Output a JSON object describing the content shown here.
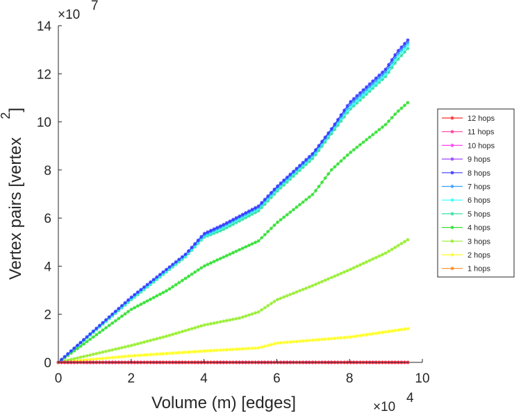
{
  "chart_data": {
    "type": "line",
    "title": "",
    "xlabel": "Volume (m) [edges]",
    "ylabel": "Vertex pairs [vertex",
    "ylabel_superscript": "2",
    "ylabel_close": "]",
    "x_multiplier": "×10",
    "x_multiplier_exp": "4",
    "y_multiplier": "×10",
    "y_multiplier_exp": "7",
    "x_ticks": [
      "0",
      "2",
      "4",
      "6",
      "8",
      "10"
    ],
    "y_ticks": [
      "0",
      "2",
      "4",
      "6",
      "8",
      "10",
      "12",
      "14"
    ],
    "xlim": [
      0,
      10
    ],
    "ylim": [
      0,
      14
    ],
    "grid": false,
    "legend_position": "right",
    "x_range": [
      0,
      9.6
    ],
    "series": [
      {
        "name": "12 hops",
        "color": "#ff2a2a",
        "x": [
          0,
          9.6
        ],
        "values": [
          0,
          0
        ]
      },
      {
        "name": "11 hops",
        "color": "#ff3f9f",
        "x": [
          0,
          9.6
        ],
        "values": [
          0,
          0
        ]
      },
      {
        "name": "10 hops",
        "color": "#ff44ee",
        "x": [
          0,
          9.6
        ],
        "values": [
          0,
          0
        ]
      },
      {
        "name": "9 hops",
        "color": "#9a44ff",
        "x": [
          0,
          9.6
        ],
        "values": [
          0,
          0
        ]
      },
      {
        "name": "8 hops",
        "color": "#3a3aff",
        "x": [
          0,
          2,
          3.5,
          4,
          4.5,
          5,
          5.5,
          6,
          7,
          7.5,
          8,
          8.5,
          9,
          9.3,
          9.6
        ],
        "values": [
          0,
          2.7,
          4.5,
          5.35,
          5.7,
          6.1,
          6.5,
          7.3,
          8.7,
          9.7,
          10.8,
          11.5,
          12.2,
          12.9,
          13.4
        ]
      },
      {
        "name": "7 hops",
        "color": "#3aa0ff",
        "x": [
          0,
          2,
          3.5,
          4,
          4.5,
          5,
          5.5,
          6,
          7,
          7.5,
          8,
          8.5,
          9,
          9.3,
          9.6
        ],
        "values": [
          0,
          2.7,
          4.5,
          5.3,
          5.65,
          6.05,
          6.45,
          7.25,
          8.65,
          9.65,
          10.7,
          11.4,
          12.1,
          12.8,
          13.3
        ]
      },
      {
        "name": "6 hops",
        "color": "#33ffff",
        "x": [
          0,
          2,
          3.5,
          4,
          4.5,
          5,
          5.5,
          6,
          7,
          7.5,
          8,
          8.5,
          9,
          9.3,
          9.6
        ],
        "values": [
          0,
          2.65,
          4.45,
          5.25,
          5.6,
          6.0,
          6.4,
          7.2,
          8.6,
          9.6,
          10.6,
          11.3,
          12.0,
          12.7,
          13.2
        ]
      },
      {
        "name": "5 hops",
        "color": "#33e0a0",
        "x": [
          0,
          2,
          3.5,
          4,
          4.5,
          5,
          5.5,
          6,
          7,
          7.5,
          8,
          8.5,
          9,
          9.3,
          9.6
        ],
        "values": [
          0,
          2.6,
          4.4,
          5.2,
          5.5,
          5.9,
          6.3,
          7.1,
          8.5,
          9.5,
          10.5,
          11.2,
          11.9,
          12.55,
          13.05
        ]
      },
      {
        "name": "4 hops",
        "color": "#33e033",
        "x": [
          0,
          2,
          3,
          4,
          5,
          5.5,
          6,
          7,
          7.5,
          8,
          8.5,
          9,
          9.3,
          9.6
        ],
        "values": [
          0,
          2.2,
          3.0,
          4.0,
          4.7,
          5.05,
          5.8,
          7.0,
          8.0,
          8.7,
          9.3,
          9.9,
          10.4,
          10.8
        ]
      },
      {
        "name": "3 hops",
        "color": "#99ee33",
        "x": [
          0,
          2,
          3,
          4,
          5,
          5.5,
          6,
          7,
          8,
          9,
          9.6
        ],
        "values": [
          0,
          0.7,
          1.1,
          1.55,
          1.85,
          2.1,
          2.6,
          3.2,
          3.85,
          4.55,
          5.1
        ]
      },
      {
        "name": "2 hops",
        "color": "#ffff22",
        "x": [
          0,
          2,
          4,
          5.5,
          6,
          8,
          9.6
        ],
        "values": [
          0,
          0.27,
          0.47,
          0.6,
          0.8,
          1.05,
          1.4
        ]
      },
      {
        "name": "1 hops",
        "color": "#ff8c22",
        "x": [
          0,
          9.6
        ],
        "values": [
          0,
          0
        ]
      }
    ]
  }
}
